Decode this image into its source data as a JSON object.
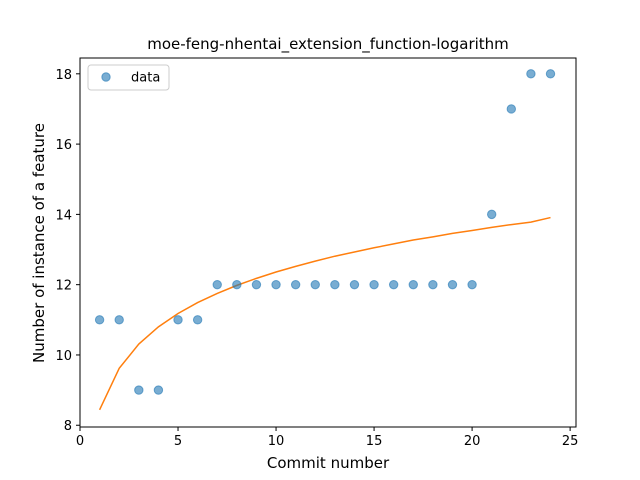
{
  "chart_data": {
    "type": "scatter",
    "title": "moe-feng-nhentai_extension_function-logarithm",
    "xlabel": "Commit number",
    "ylabel": "Number of instance of a feature",
    "xlim": [
      0,
      25.3
    ],
    "ylim": [
      7.95,
      18.45
    ],
    "xticks": [
      0,
      5,
      10,
      15,
      20,
      25
    ],
    "yticks": [
      8,
      10,
      12,
      14,
      16,
      18
    ],
    "grid": false,
    "legend": {
      "position": "top-left",
      "entries": [
        "data"
      ]
    },
    "colors": {
      "data": "#1f77b4",
      "fit": "#ff7f0e"
    },
    "series": [
      {
        "name": "data",
        "kind": "scatter",
        "x": [
          1,
          2,
          3,
          4,
          5,
          6,
          7,
          8,
          9,
          10,
          11,
          12,
          13,
          14,
          15,
          16,
          17,
          18,
          19,
          20,
          21,
          22,
          23,
          24
        ],
        "y": [
          11,
          11,
          9,
          9,
          11,
          11,
          12,
          12,
          12,
          12,
          12,
          12,
          12,
          12,
          12,
          12,
          12,
          12,
          12,
          12,
          14,
          17,
          18,
          18
        ]
      },
      {
        "kind": "line",
        "x": [
          1,
          2,
          3,
          4,
          5,
          6,
          7,
          8,
          9,
          10,
          11,
          12,
          13,
          14,
          15,
          16,
          17,
          18,
          19,
          20,
          21,
          22,
          23,
          24
        ],
        "y": [
          8.44,
          9.62,
          10.31,
          10.8,
          11.18,
          11.49,
          11.75,
          11.98,
          12.18,
          12.36,
          12.52,
          12.67,
          12.81,
          12.93,
          13.05,
          13.16,
          13.27,
          13.36,
          13.46,
          13.54,
          13.63,
          13.71,
          13.78,
          13.91
        ]
      }
    ]
  }
}
